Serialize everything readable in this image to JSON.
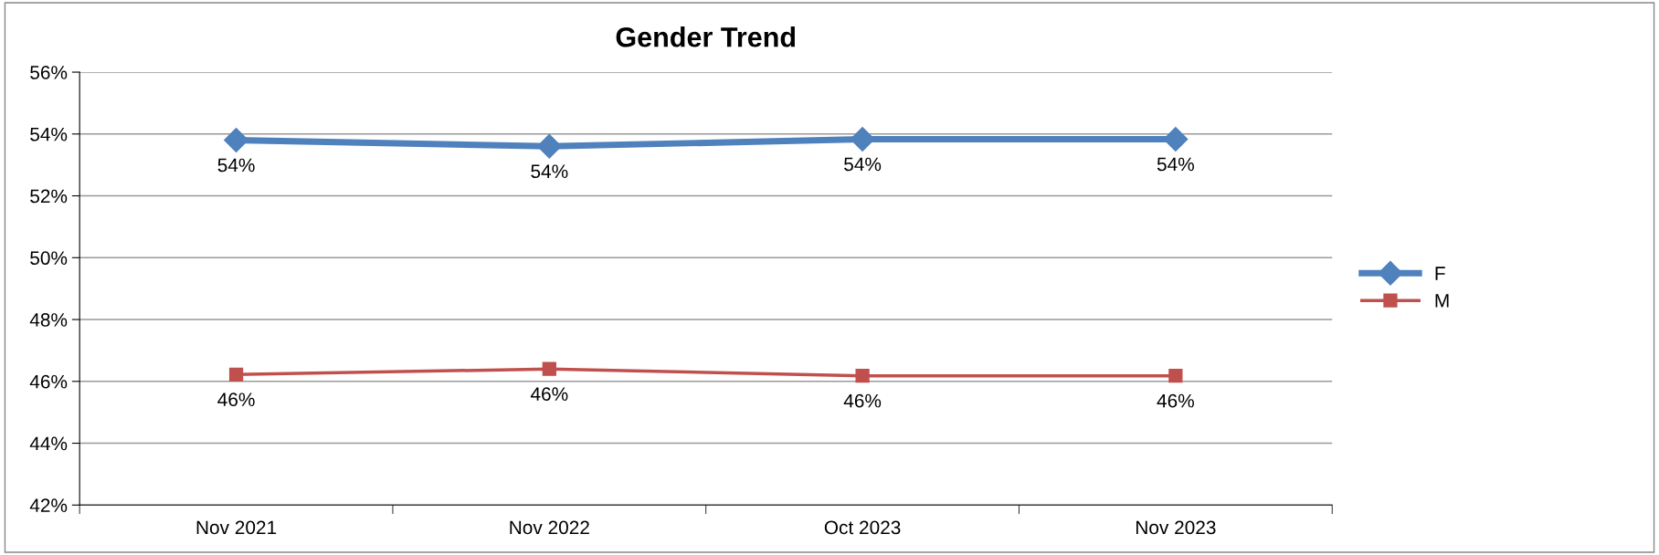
{
  "chart_data": {
    "type": "line",
    "title": "Gender Trend",
    "categories": [
      "Nov 2021",
      "Nov 2022",
      "Oct 2023",
      "Nov 2023"
    ],
    "series": [
      {
        "name": "F",
        "color": "#4f81bd",
        "marker": "diamond",
        "values": [
          53.8,
          53.6,
          53.83,
          53.83
        ],
        "value_labels": [
          "54%",
          "54%",
          "54%",
          "54%"
        ]
      },
      {
        "name": "M",
        "color": "#c0504d",
        "marker": "square",
        "values": [
          46.22,
          46.4,
          46.18,
          46.18
        ],
        "value_labels": [
          "46%",
          "46%",
          "46%",
          "46%"
        ]
      }
    ],
    "ylim": [
      42,
      56
    ],
    "yticks": [
      {
        "value": 42,
        "label": "42%"
      },
      {
        "value": 44,
        "label": "44%"
      },
      {
        "value": 46,
        "label": "46%"
      },
      {
        "value": 48,
        "label": "48%"
      },
      {
        "value": 50,
        "label": "50%"
      },
      {
        "value": 52,
        "label": "52%"
      },
      {
        "value": 54,
        "label": "54%"
      },
      {
        "value": 56,
        "label": "56%"
      }
    ],
    "grid": "y",
    "legend": "right",
    "line_style": "solid"
  }
}
